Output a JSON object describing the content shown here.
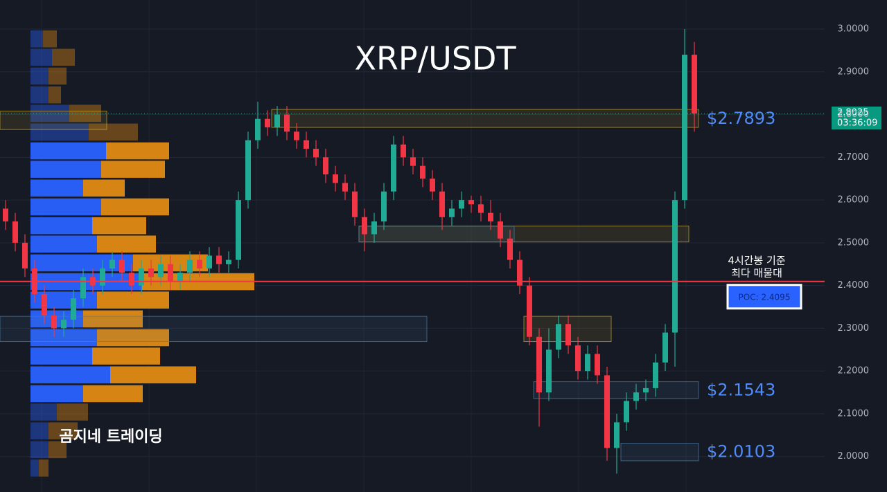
{
  "chart_data": {
    "type": "candlestick",
    "title": "XRP/USDT",
    "watermark": "곰지네 트레이딩",
    "colors": {
      "up": "#22ab94",
      "down": "#f23645",
      "buy": "#2962ff",
      "sell": "#e08a12",
      "poc": "#f23645"
    },
    "ylim": [
      1.917,
      3.068
    ],
    "yticks": [
      {
        "value": 2.0,
        "label": "2.0000"
      },
      {
        "value": 2.1,
        "label": "2.1000"
      },
      {
        "value": 2.2,
        "label": "2.2000"
      },
      {
        "value": 2.3,
        "label": "2.3000"
      },
      {
        "value": 2.4,
        "label": "2.4000"
      },
      {
        "value": 2.5,
        "label": "2.5000"
      },
      {
        "value": 2.6,
        "label": "2.6000"
      },
      {
        "value": 2.7,
        "label": "2.7000"
      },
      {
        "value": 2.8,
        "label": "2.8000"
      },
      {
        "value": 2.9,
        "label": "2.9000"
      },
      {
        "value": 3.0,
        "label": "3.0000"
      }
    ],
    "grid": true,
    "ohlc": [
      [
        2.58,
        2.6,
        2.53,
        2.55
      ],
      [
        2.55,
        2.57,
        2.48,
        2.5
      ],
      [
        2.5,
        2.52,
        2.42,
        2.44
      ],
      [
        2.44,
        2.46,
        2.36,
        2.38
      ],
      [
        2.38,
        2.4,
        2.31,
        2.33
      ],
      [
        2.33,
        2.35,
        2.28,
        2.3
      ],
      [
        2.3,
        2.34,
        2.28,
        2.32
      ],
      [
        2.32,
        2.39,
        2.3,
        2.37
      ],
      [
        2.37,
        2.44,
        2.35,
        2.42
      ],
      [
        2.42,
        2.44,
        2.38,
        2.4
      ],
      [
        2.4,
        2.46,
        2.38,
        2.44
      ],
      [
        2.44,
        2.48,
        2.42,
        2.46
      ],
      [
        2.46,
        2.48,
        2.41,
        2.43
      ],
      [
        2.43,
        2.45,
        2.38,
        2.4
      ],
      [
        2.4,
        2.46,
        2.38,
        2.44
      ],
      [
        2.44,
        2.46,
        2.4,
        2.42
      ],
      [
        2.42,
        2.47,
        2.4,
        2.45
      ],
      [
        2.45,
        2.47,
        2.39,
        2.41
      ],
      [
        2.41,
        2.45,
        2.39,
        2.43
      ],
      [
        2.43,
        2.48,
        2.41,
        2.46
      ],
      [
        2.46,
        2.48,
        2.42,
        2.44
      ],
      [
        2.44,
        2.49,
        2.42,
        2.47
      ],
      [
        2.47,
        2.49,
        2.43,
        2.45
      ],
      [
        2.45,
        2.48,
        2.43,
        2.46
      ],
      [
        2.46,
        2.62,
        2.44,
        2.6
      ],
      [
        2.6,
        2.76,
        2.58,
        2.74
      ],
      [
        2.74,
        2.83,
        2.72,
        2.79
      ],
      [
        2.79,
        2.81,
        2.75,
        2.77
      ],
      [
        2.77,
        2.82,
        2.75,
        2.8
      ],
      [
        2.8,
        2.82,
        2.74,
        2.76
      ],
      [
        2.76,
        2.78,
        2.72,
        2.74
      ],
      [
        2.74,
        2.76,
        2.7,
        2.72
      ],
      [
        2.72,
        2.74,
        2.68,
        2.7
      ],
      [
        2.7,
        2.72,
        2.64,
        2.66
      ],
      [
        2.66,
        2.68,
        2.62,
        2.64
      ],
      [
        2.64,
        2.66,
        2.6,
        2.62
      ],
      [
        2.62,
        2.64,
        2.54,
        2.56
      ],
      [
        2.56,
        2.58,
        2.48,
        2.52
      ],
      [
        2.52,
        2.57,
        2.5,
        2.55
      ],
      [
        2.55,
        2.64,
        2.53,
        2.62
      ],
      [
        2.62,
        2.75,
        2.6,
        2.73
      ],
      [
        2.73,
        2.75,
        2.68,
        2.7
      ],
      [
        2.7,
        2.72,
        2.66,
        2.68
      ],
      [
        2.68,
        2.7,
        2.63,
        2.65
      ],
      [
        2.65,
        2.67,
        2.6,
        2.62
      ],
      [
        2.62,
        2.64,
        2.53,
        2.56
      ],
      [
        2.56,
        2.6,
        2.54,
        2.58
      ],
      [
        2.58,
        2.62,
        2.56,
        2.6
      ],
      [
        2.6,
        2.61,
        2.57,
        2.59
      ],
      [
        2.59,
        2.61,
        2.55,
        2.57
      ],
      [
        2.57,
        2.6,
        2.53,
        2.55
      ],
      [
        2.55,
        2.57,
        2.49,
        2.51
      ],
      [
        2.51,
        2.53,
        2.44,
        2.46
      ],
      [
        2.46,
        2.48,
        2.38,
        2.4
      ],
      [
        2.4,
        2.42,
        2.26,
        2.28
      ],
      [
        2.28,
        2.3,
        2.07,
        2.15
      ],
      [
        2.15,
        2.3,
        2.13,
        2.25
      ],
      [
        2.25,
        2.33,
        2.23,
        2.31
      ],
      [
        2.31,
        2.33,
        2.24,
        2.26
      ],
      [
        2.26,
        2.28,
        2.18,
        2.2
      ],
      [
        2.2,
        2.26,
        2.18,
        2.24
      ],
      [
        2.24,
        2.26,
        2.17,
        2.19
      ],
      [
        2.19,
        2.21,
        1.99,
        2.02
      ],
      [
        2.02,
        2.1,
        1.96,
        2.08
      ],
      [
        2.08,
        2.15,
        2.06,
        2.13
      ],
      [
        2.13,
        2.17,
        2.11,
        2.15
      ],
      [
        2.15,
        2.18,
        2.13,
        2.16
      ],
      [
        2.16,
        2.24,
        2.14,
        2.22
      ],
      [
        2.22,
        2.31,
        2.2,
        2.29
      ],
      [
        2.29,
        2.62,
        2.21,
        2.6
      ],
      [
        2.6,
        3.0,
        2.58,
        2.94
      ],
      [
        2.94,
        2.97,
        2.76,
        2.8025
      ]
    ],
    "volume_profile": {
      "prices": [
        2.977,
        2.934,
        2.89,
        2.846,
        2.803,
        2.759,
        2.715,
        2.672,
        2.628,
        2.584,
        2.54,
        2.497,
        2.453,
        2.409,
        2.366,
        2.322,
        2.278,
        2.235,
        2.191,
        2.147,
        2.104,
        2.06,
        2.016,
        1.973
      ],
      "buy": [
        18,
        31,
        26,
        26,
        56,
        84,
        109,
        102,
        76,
        102,
        89,
        96,
        148,
        161,
        96,
        76,
        96,
        89,
        115,
        76,
        38,
        26,
        26,
        12
      ],
      "sell": [
        20,
        33,
        26,
        18,
        46,
        71,
        91,
        92,
        60,
        98,
        78,
        85,
        108,
        162,
        104,
        86,
        104,
        98,
        124,
        86,
        45,
        42,
        26,
        14
      ],
      "value_area": [
        2.12,
        2.74
      ]
    },
    "zones": [
      {
        "low": 2.77,
        "high": 2.812,
        "from": 28,
        "to": 71,
        "color": "#c9a227"
      },
      {
        "low": 2.765,
        "high": 2.808,
        "from": 0,
        "to": 10,
        "color": "#c9a227"
      },
      {
        "low": 2.502,
        "high": 2.539,
        "from": 37,
        "to": 70,
        "color": "#c9a227"
      },
      {
        "low": 2.502,
        "high": 2.539,
        "from": 37,
        "to": 52,
        "color": "#4a7fa8"
      },
      {
        "low": 2.269,
        "high": 2.328,
        "from": 0,
        "to": 43,
        "color": "#4a7fa8"
      },
      {
        "low": 2.269,
        "high": 2.328,
        "from": 54,
        "to": 62,
        "color": "#c9a227"
      },
      {
        "low": 2.136,
        "high": 2.175,
        "from": 55,
        "to": 71,
        "color": "#4a7fa8"
      },
      {
        "low": 1.99,
        "high": 2.031,
        "from": 64,
        "to": 71,
        "color": "#4a7fa8"
      }
    ],
    "price_labels": [
      {
        "value": 2.7893,
        "label": "$2.7893"
      },
      {
        "value": 2.1543,
        "label": "$2.1543"
      },
      {
        "value": 2.0103,
        "label": "$2.0103"
      }
    ],
    "poc": {
      "value": 2.4095,
      "label": "POC: 2.4095"
    },
    "poc_note": [
      "4시간봉 기준",
      "최다 매물대"
    ],
    "current_price": {
      "value": 2.8025,
      "label": "2.8025"
    },
    "countdown": "03:36:09"
  }
}
